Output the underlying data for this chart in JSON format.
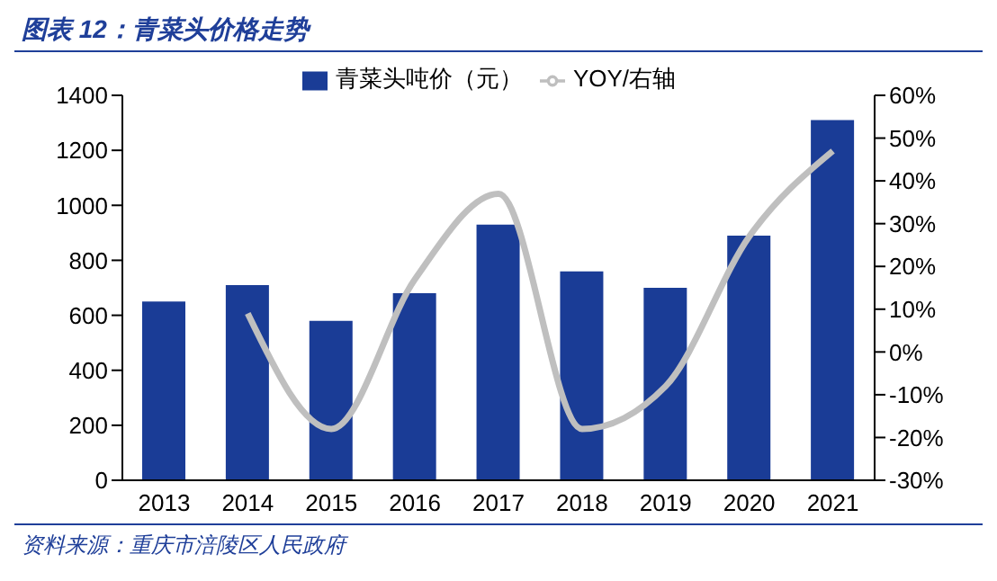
{
  "chart_data": {
    "type": "bar",
    "title": "图表 12：青菜头价格走势",
    "categories": [
      "2013",
      "2014",
      "2015",
      "2016",
      "2017",
      "2018",
      "2019",
      "2020",
      "2021"
    ],
    "series": [
      {
        "name": "青菜头吨价（元）",
        "color": "#1a3c96",
        "values": [
          650,
          710,
          580,
          680,
          930,
          760,
          700,
          890,
          1310
        ]
      },
      {
        "name": "YOY/右轴",
        "type": "line",
        "axis": "y2",
        "color": "#bfbfbf",
        "values": [
          null,
          9,
          -18,
          17,
          37,
          -18,
          -8,
          27,
          47
        ]
      }
    ],
    "ylim": [
      0,
      1400
    ],
    "yticks": [
      0,
      200,
      400,
      600,
      800,
      1000,
      1200,
      1400
    ],
    "y2lim": [
      -30,
      60
    ],
    "y2ticks": [
      {
        "value": -30,
        "label": "-30%"
      },
      {
        "value": -20,
        "label": "-20%"
      },
      {
        "value": -10,
        "label": "-10%"
      },
      {
        "value": 0,
        "label": "0%"
      },
      {
        "value": 10,
        "label": "10%"
      },
      {
        "value": 20,
        "label": "20%"
      },
      {
        "value": 30,
        "label": "30%"
      },
      {
        "value": 40,
        "label": "40%"
      },
      {
        "value": 50,
        "label": "50%"
      },
      {
        "value": 60,
        "label": "60%"
      }
    ],
    "legend": "top",
    "grid": false,
    "marker": "none",
    "annotations": [
      "资料来源：重庆市涪陵区人民政府"
    ]
  }
}
